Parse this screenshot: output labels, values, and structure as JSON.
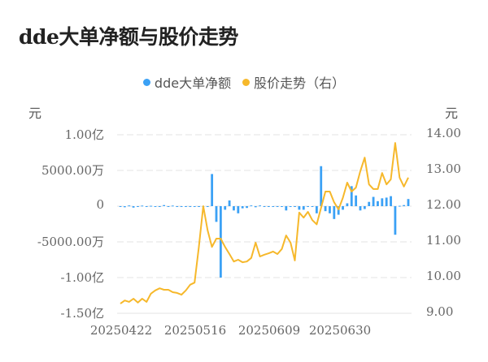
{
  "title": "dde大单净额与股价走势",
  "legend": [
    {
      "label": "dde大单净额",
      "color": "#3ba1f5"
    },
    {
      "label": "股价走势（右）",
      "color": "#f6b82b"
    }
  ],
  "axes": {
    "left_unit": "元",
    "right_unit": "元",
    "left_ticks": [
      "1.00亿",
      "5000.00万",
      "0",
      "-5000.00万",
      "-1.00亿",
      "-1.50亿"
    ],
    "right_ticks": [
      "14.00",
      "13.00",
      "12.00",
      "11.00",
      "10.00",
      "9.00"
    ],
    "x_ticks": [
      "20250422",
      "20250516",
      "20250609",
      "20250630"
    ]
  },
  "chart_data": {
    "type": "bar+line",
    "title": "dde大单净额与股价走势",
    "x_tick_labels": [
      "20250422",
      "20250516",
      "20250609",
      "20250630"
    ],
    "left_axis": {
      "label": "元",
      "unit": "元",
      "ylim": [
        -150000000,
        100000000
      ],
      "ticks": [
        100000000,
        50000000,
        0,
        -50000000,
        -100000000,
        -150000000
      ]
    },
    "right_axis": {
      "label": "元",
      "unit": "元",
      "ylim": [
        9.0,
        14.0
      ],
      "ticks": [
        14,
        13,
        12,
        11,
        10,
        9
      ]
    },
    "grid": true,
    "legend_position": "top",
    "series": [
      {
        "name": "dde大单净额",
        "type": "bar",
        "axis": "left",
        "color": "#3ba1f5",
        "values": [
          -1000000,
          -1500000,
          1000000,
          -2000000,
          -500000,
          800000,
          -1000000,
          500000,
          -800000,
          -500000,
          1500000,
          -1000000,
          800000,
          -500000,
          -700000,
          -800000,
          -500000,
          -1000000,
          -600000,
          -800000,
          -500000,
          45000000,
          -22000000,
          -100000000,
          -5000000,
          8000000,
          -6000000,
          -10000000,
          -3000000,
          -2500000,
          1000000,
          -1500000,
          1000000,
          -800000,
          -500000,
          -1000000,
          -500000,
          -500000,
          -6000000,
          -800000,
          -500000,
          -5000000,
          -5000000,
          -800000,
          -1000000,
          -10000000,
          56000000,
          -7000000,
          -10000000,
          -18000000,
          -12000000,
          -5000000,
          4000000,
          28000000,
          15000000,
          -6000000,
          -4000000,
          6000000,
          13000000,
          7000000,
          11000000,
          12000000,
          14000000,
          -40000000,
          500000,
          1500000,
          10000000
        ]
      },
      {
        "name": "股价走势（右）",
        "type": "line",
        "axis": "right",
        "color": "#f6b82b",
        "values": [
          9.27,
          9.36,
          9.32,
          9.41,
          9.3,
          9.41,
          9.32,
          9.55,
          9.64,
          9.7,
          9.66,
          9.66,
          9.59,
          9.57,
          9.52,
          9.64,
          9.8,
          9.86,
          10.86,
          12.0,
          11.32,
          10.86,
          11.09,
          11.09,
          10.86,
          10.66,
          10.45,
          10.5,
          10.43,
          10.45,
          10.55,
          10.98,
          10.59,
          10.64,
          10.68,
          10.73,
          10.66,
          10.8,
          11.18,
          10.98,
          10.48,
          11.82,
          11.68,
          11.84,
          11.61,
          11.49,
          11.95,
          12.41,
          12.41,
          12.11,
          11.91,
          12.23,
          12.66,
          12.41,
          12.52,
          12.98,
          13.36,
          12.61,
          12.48,
          12.48,
          12.93,
          12.61,
          12.75,
          13.77,
          12.8,
          12.55,
          12.8
        ]
      }
    ]
  }
}
